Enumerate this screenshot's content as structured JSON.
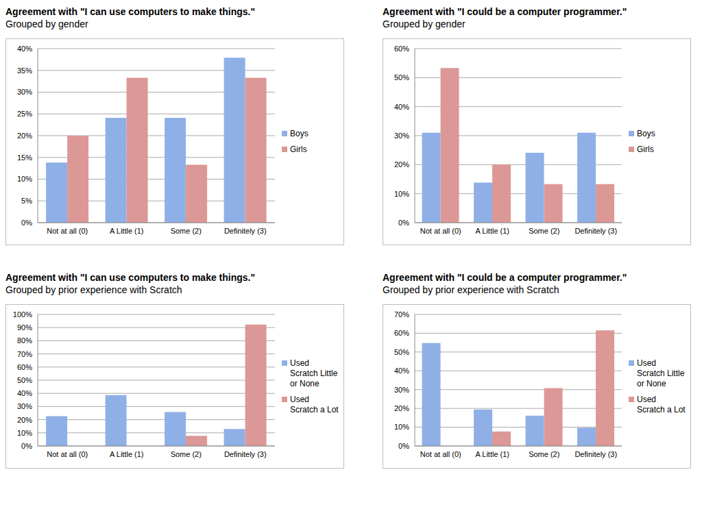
{
  "chart_data": [
    {
      "type": "bar",
      "title": "Agreement with \"I can use computers to make things.\"",
      "subtitle": "Grouped by gender",
      "categories": [
        "Not at all (0)",
        "A Little (1)",
        "Some (2)",
        "Definitely (3)"
      ],
      "series": [
        {
          "name": "Boys",
          "color": "#8fb0e6",
          "values": [
            13.8,
            24.1,
            24.1,
            37.9
          ]
        },
        {
          "name": "Girls",
          "color": "#dc9896",
          "values": [
            20,
            33.3,
            13.3,
            33.3
          ]
        }
      ],
      "ylim": [
        0,
        40
      ],
      "yticks": [
        {
          "value": 0,
          "label": "0%"
        },
        {
          "value": 5,
          "label": "5%"
        },
        {
          "value": 10,
          "label": "10%"
        },
        {
          "value": 15,
          "label": "15%"
        },
        {
          "value": 20,
          "label": "20%"
        },
        {
          "value": 25,
          "label": "25%"
        },
        {
          "value": 30,
          "label": "30%"
        },
        {
          "value": 35,
          "label": "35%"
        },
        {
          "value": 40,
          "label": "40%"
        }
      ],
      "grid": true,
      "legend": "right"
    },
    {
      "type": "bar",
      "title": "Agreement with \"I could be a computer programmer.\"",
      "subtitle": "Grouped by gender",
      "categories": [
        "Not at all (0)",
        "A Little (1)",
        "Some (2)",
        "Definitely (3)"
      ],
      "series": [
        {
          "name": "Boys",
          "color": "#8fb0e6",
          "values": [
            31,
            13.8,
            24.1,
            31
          ]
        },
        {
          "name": "Girls",
          "color": "#dc9896",
          "values": [
            53.3,
            20,
            13.3,
            13.3
          ]
        }
      ],
      "ylim": [
        0,
        60
      ],
      "yticks": [
        {
          "value": 0,
          "label": "0%"
        },
        {
          "value": 10,
          "label": "10%"
        },
        {
          "value": 20,
          "label": "20%"
        },
        {
          "value": 30,
          "label": "30%"
        },
        {
          "value": 40,
          "label": "40%"
        },
        {
          "value": 50,
          "label": "50%"
        },
        {
          "value": 60,
          "label": "60%"
        }
      ],
      "grid": true,
      "legend": "right"
    },
    {
      "type": "bar",
      "title": "Agreement with \"I can use computers to make things.\"",
      "subtitle": "Grouped by prior experience with Scratch",
      "categories": [
        "Not at all (0)",
        "A Little (1)",
        "Some (2)",
        "Definitely (3)"
      ],
      "series": [
        {
          "name": "Used Scratch Little or None",
          "color": "#8fb0e6",
          "values": [
            22.6,
            38.7,
            25.8,
            12.9
          ]
        },
        {
          "name": "Used Scratch a Lot",
          "color": "#dc9896",
          "values": [
            0,
            0,
            7.7,
            92.3
          ]
        }
      ],
      "ylim": [
        0,
        100
      ],
      "yticks": [
        {
          "value": 0,
          "label": "0%"
        },
        {
          "value": 10,
          "label": "10%"
        },
        {
          "value": 20,
          "label": "20%"
        },
        {
          "value": 30,
          "label": "30%"
        },
        {
          "value": 40,
          "label": "40%"
        },
        {
          "value": 50,
          "label": "50%"
        },
        {
          "value": 60,
          "label": "60%"
        },
        {
          "value": 70,
          "label": "70%"
        },
        {
          "value": 80,
          "label": "80%"
        },
        {
          "value": 90,
          "label": "90%"
        },
        {
          "value": 100,
          "label": "100%"
        }
      ],
      "grid": true,
      "legend": "right"
    },
    {
      "type": "bar",
      "title": "Agreement with \"I could be a computer programmer.\"",
      "subtitle": "Grouped by prior experience with Scratch",
      "categories": [
        "Not at all (0)",
        "A Little (1)",
        "Some (2)",
        "Definitely (3)"
      ],
      "series": [
        {
          "name": "Used Scratch Little or None",
          "color": "#8fb0e6",
          "values": [
            54.8,
            19.4,
            16.1,
            9.7
          ]
        },
        {
          "name": "Used Scratch a Lot",
          "color": "#dc9896",
          "values": [
            0,
            7.7,
            30.8,
            61.5
          ]
        }
      ],
      "ylim": [
        0,
        70
      ],
      "yticks": [
        {
          "value": 0,
          "label": "0%"
        },
        {
          "value": 10,
          "label": "10%"
        },
        {
          "value": 20,
          "label": "20%"
        },
        {
          "value": 30,
          "label": "30%"
        },
        {
          "value": 40,
          "label": "40%"
        },
        {
          "value": 50,
          "label": "50%"
        },
        {
          "value": 60,
          "label": "60%"
        },
        {
          "value": 70,
          "label": "70%"
        }
      ],
      "grid": true,
      "legend": "right"
    }
  ]
}
